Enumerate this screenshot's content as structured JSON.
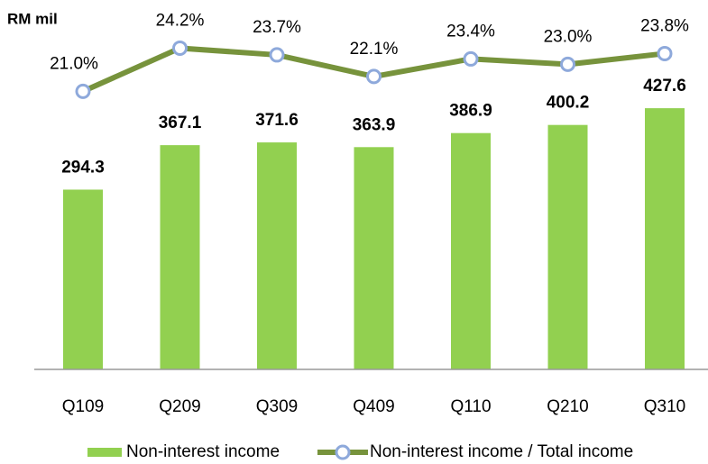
{
  "chart_data": {
    "type": "bar_line",
    "y_label": "RM mil",
    "categories": [
      "Q109",
      "Q209",
      "Q309",
      "Q409",
      "Q110",
      "Q210",
      "Q310"
    ],
    "series": [
      {
        "name": "Non-interest income",
        "type": "bar",
        "color": "#92d050",
        "values": [
          294.3,
          367.1,
          371.6,
          363.9,
          386.9,
          400.2,
          427.6
        ]
      },
      {
        "name": "Non-interest income / Total income",
        "type": "line",
        "axis": "y2",
        "color": "#77933c",
        "marker_color": "#8ea9db",
        "values": [
          21.0,
          24.2,
          23.7,
          22.1,
          23.4,
          23.0,
          23.8
        ],
        "value_labels": [
          "21.0%",
          "24.2%",
          "23.7%",
          "22.1%",
          "23.4%",
          "23.0%",
          "23.8%"
        ]
      }
    ],
    "ylim": [
      0,
      590
    ],
    "y2lim": [
      0.4,
      27.1
    ]
  }
}
